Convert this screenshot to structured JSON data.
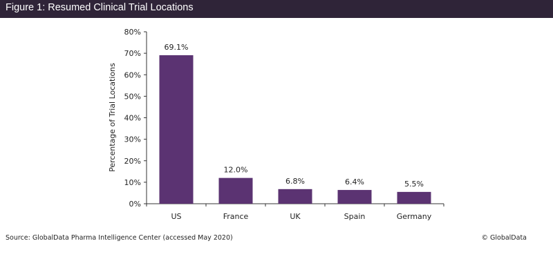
{
  "header": {
    "title": "Figure 1: Resumed Clinical Trial Locations"
  },
  "footer": {
    "source": "Source: GlobalData Pharma Intelligence Center (accessed May 2020)",
    "copyright": "© GlobalData"
  },
  "chart_data": {
    "type": "bar",
    "title": "Figure 1: Resumed Clinical Trial Locations",
    "xlabel": "",
    "ylabel": "Percentage of Trial Locations",
    "categories": [
      "US",
      "France",
      "UK",
      "Spain",
      "Germany"
    ],
    "values": [
      69.1,
      12.0,
      6.8,
      6.4,
      5.5
    ],
    "data_labels": [
      "69.1%",
      "12.0%",
      "6.8%",
      "6.4%",
      "5.5%"
    ],
    "ylim": [
      0,
      80
    ],
    "yticks": [
      "0%",
      "10%",
      "20%",
      "30%",
      "40%",
      "50%",
      "60%",
      "70%",
      "80%"
    ],
    "grid": false,
    "bar_color": "#5b3372"
  }
}
